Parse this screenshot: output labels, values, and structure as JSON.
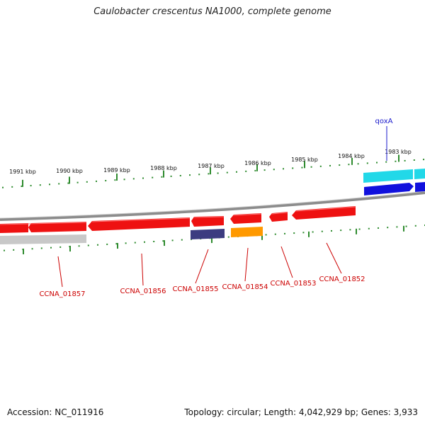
{
  "title": "Caulobacter crescentus NA1000, complete genome",
  "footer": {
    "accession": "Accession: NC_011916",
    "summary": "Topology: circular; Length: 4,042,929 bp; Genes: 3,933"
  },
  "colors": {
    "forward_ruler": "#2e8b2e",
    "backbone": "#8c8c8c",
    "gene_red": "#ee1111",
    "label_red": "#cc0000",
    "label_blue": "#1a1acc",
    "cyan": "#22d8e8",
    "blue": "#1010dd",
    "navy": "#3c3c80",
    "orange": "#ff9900",
    "grey_gene": "#c8c8c8"
  },
  "ruler_labels": [
    "1991 kbp",
    "1990 kbp",
    "1989 kbp",
    "1988 kbp",
    "1987 kbp",
    "1986 kbp",
    "1985 kbp",
    "1984 kbp",
    "1983 kbp"
  ],
  "gene_labels": [
    {
      "name": "CCNA_01857",
      "color_key": "label_red"
    },
    {
      "name": "CCNA_01856",
      "color_key": "label_red"
    },
    {
      "name": "CCNA_01855",
      "color_key": "label_red"
    },
    {
      "name": "CCNA_01854",
      "color_key": "label_red"
    },
    {
      "name": "CCNA_01853",
      "color_key": "label_red"
    },
    {
      "name": "CCNA_01852",
      "color_key": "label_red"
    },
    {
      "name": "qoxA",
      "color_key": "label_blue"
    }
  ]
}
